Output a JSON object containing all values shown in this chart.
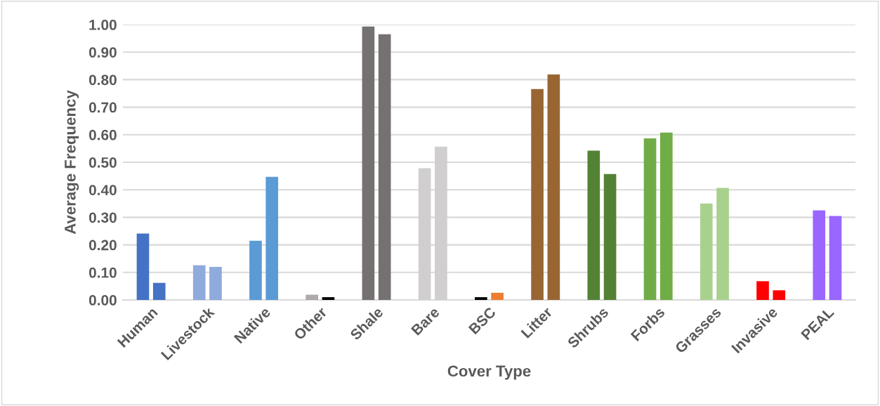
{
  "chart_data": {
    "type": "bar",
    "xlabel": "Cover Type",
    "ylabel": "Average Frequency",
    "categories": [
      "Human",
      "Livestock",
      "Native",
      "Other",
      "Shale",
      "Bare",
      "BSC",
      "Litter",
      "Shrubs",
      "Forbs",
      "Grasses",
      "Invasive",
      "PEAL"
    ],
    "series": [
      {
        "values": [
          0.241,
          0.126,
          0.215,
          0.019,
          0.993,
          0.478,
          0.01,
          0.766,
          0.542,
          0.587,
          0.35,
          0.068,
          0.325
        ],
        "colors": [
          "#4472c4",
          "#8faadc",
          "#5b9bd5",
          "#aeaaaa",
          "#757171",
          "#d0cece",
          "#000000",
          "#996633",
          "#548235",
          "#70ad47",
          "#a9d18e",
          "#ff0000",
          "#9966ff"
        ]
      },
      {
        "values": [
          0.062,
          0.12,
          0.447,
          0.01,
          0.965,
          0.557,
          0.026,
          0.819,
          0.457,
          0.608,
          0.407,
          0.035,
          0.305
        ],
        "colors": [
          "#4472c4",
          "#8faadc",
          "#5b9bd5",
          "#000000",
          "#757171",
          "#d0cece",
          "#ed7d31",
          "#996633",
          "#548235",
          "#70ad47",
          "#a9d18e",
          "#ff0000",
          "#9966ff"
        ]
      }
    ],
    "ylim": [
      0,
      1.0
    ],
    "yticks": [
      {
        "value": 0,
        "label": "0.00"
      },
      {
        "value": 0.1,
        "label": "0.10"
      },
      {
        "value": 0.2,
        "label": "0.20"
      },
      {
        "value": 0.3,
        "label": "0.30"
      },
      {
        "value": 0.4,
        "label": "0.40"
      },
      {
        "value": 0.5,
        "label": "0.50"
      },
      {
        "value": 0.6,
        "label": "0.60"
      },
      {
        "value": 0.7,
        "label": "0.70"
      },
      {
        "value": 0.8,
        "label": "0.80"
      },
      {
        "value": 0.9,
        "label": "0.90"
      },
      {
        "value": 1.0,
        "label": "1.00"
      }
    ],
    "grid": "y",
    "legend": false
  }
}
